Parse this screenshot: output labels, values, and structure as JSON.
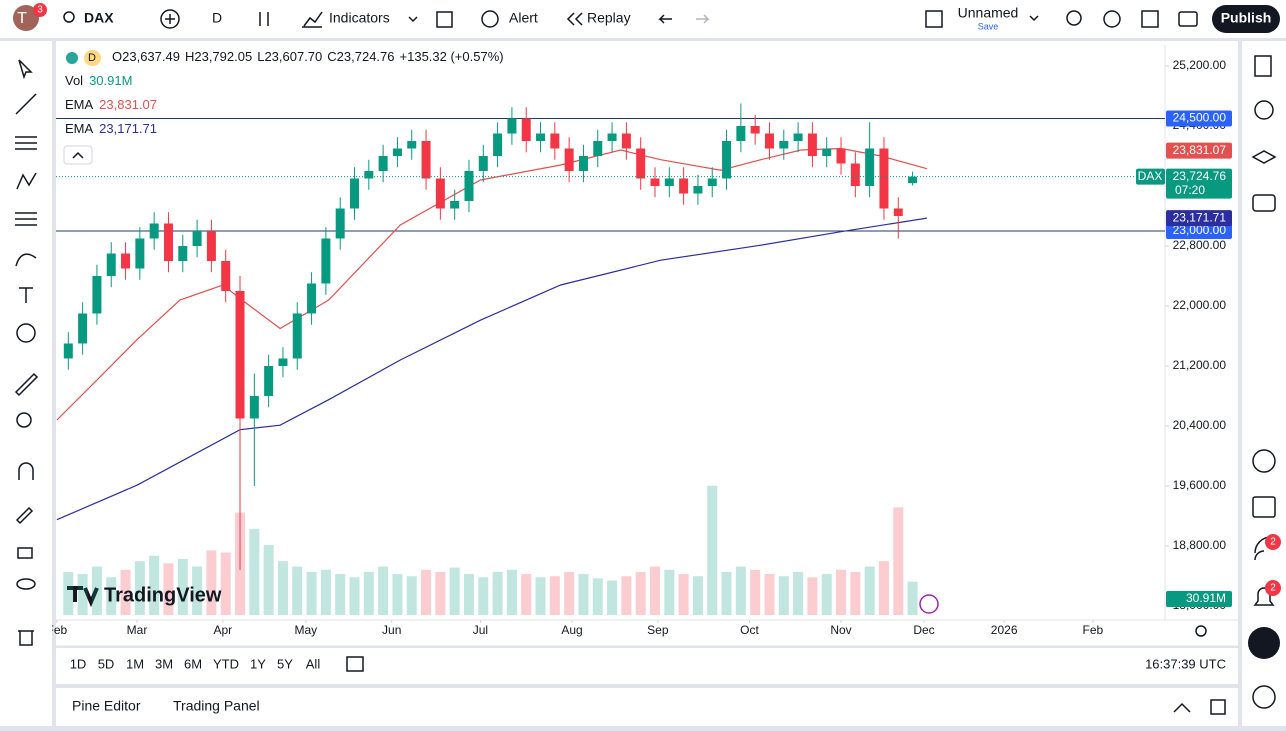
{
  "toolbar": {
    "avatar": "T",
    "notifications": "3",
    "symbol": "DAX",
    "interval": "D",
    "indicators": "Indicators",
    "alert": "Alert",
    "replay": "Replay",
    "layout_name": "Unnamed",
    "save": "Save",
    "publish": "Publish"
  },
  "legend": {
    "interval": "D",
    "o_label": "O",
    "open": "23,637.49",
    "h_label": "H",
    "high": "23,792.05",
    "l_label": "L",
    "low": "23,607.70",
    "c_label": "C",
    "close": "23,724.76",
    "change": "+135.32 (+0.57%)"
  },
  "chart_data": {
    "type": "candlestick",
    "x": [
      35,
      40,
      45,
      50,
      55,
      60,
      65,
      70,
      75,
      80,
      85,
      90,
      95,
      100,
      105,
      110,
      115,
      120,
      125,
      130,
      135,
      140,
      145,
      150,
      155,
      160,
      165,
      170,
      175,
      180,
      185,
      190,
      195,
      200,
      205,
      210,
      215,
      220,
      225,
      230,
      235,
      240,
      245,
      250,
      255,
      260,
      265,
      270,
      275,
      280,
      285,
      290,
      295,
      300,
      305,
      310,
      315,
      320,
      325,
      330
    ],
    "open": [
      21300,
      21500,
      21900,
      22400,
      22700,
      22500,
      22900,
      23100,
      22600,
      22800,
      23000,
      22600,
      22200,
      20500,
      20800,
      21200,
      21300,
      21900,
      22300,
      22900,
      23300,
      23700,
      23800,
      24000,
      24100,
      24200,
      23700,
      23300,
      23400,
      23800,
      24000,
      24300,
      24500,
      24200,
      24300,
      24100,
      23800,
      24000,
      24200,
      24300,
      24100,
      23700,
      23600,
      23700,
      23500,
      23600,
      23700,
      24200,
      24400,
      24300,
      24100,
      24200,
      24300,
      24000,
      24100,
      23900,
      23600,
      24100,
      23300,
      23637.49
    ],
    "high": [
      21650,
      22050,
      22550,
      22850,
      22850,
      23050,
      23250,
      23250,
      22950,
      23150,
      23150,
      22750,
      22400,
      21100,
      21350,
      21450,
      22050,
      22450,
      23050,
      23450,
      23850,
      23950,
      24150,
      24250,
      24350,
      24350,
      23850,
      23550,
      23950,
      24150,
      24450,
      24650,
      24650,
      24450,
      24450,
      24250,
      24150,
      24350,
      24450,
      24450,
      24250,
      23850,
      23850,
      23850,
      23750,
      23850,
      24350,
      24700,
      24550,
      24450,
      24350,
      24450,
      24450,
      24250,
      24250,
      24050,
      24450,
      24250,
      23450,
      23792.05
    ],
    "low": [
      21150,
      21350,
      21750,
      22250,
      22350,
      22350,
      22750,
      22450,
      22450,
      22650,
      22450,
      22050,
      18480,
      19600,
      20650,
      21050,
      21150,
      21750,
      22150,
      22750,
      23150,
      23550,
      23650,
      23850,
      23950,
      23550,
      23150,
      23150,
      23250,
      23650,
      23850,
      24150,
      24050,
      24050,
      23950,
      23650,
      23650,
      23850,
      24050,
      23950,
      23550,
      23450,
      23450,
      23350,
      23350,
      23450,
      23550,
      24050,
      24150,
      23950,
      23950,
      24050,
      23850,
      23850,
      23750,
      23450,
      23450,
      23150,
      22900,
      23607.7
    ],
    "close": [
      21500,
      21900,
      22400,
      22700,
      22500,
      22900,
      23100,
      22600,
      22800,
      23000,
      22600,
      22200,
      20500,
      20800,
      21200,
      21300,
      21900,
      22300,
      22900,
      23300,
      23700,
      23800,
      24000,
      24100,
      24200,
      23700,
      23300,
      23400,
      23800,
      24000,
      24300,
      24500,
      24200,
      24300,
      24100,
      23800,
      24000,
      24200,
      24300,
      24100,
      23700,
      23600,
      23700,
      23500,
      23600,
      23700,
      24200,
      24400,
      24300,
      24100,
      24200,
      24300,
      24000,
      24100,
      23900,
      23600,
      24100,
      23300,
      23200,
      23724.76
    ],
    "up_color": "#089981",
    "down_color": "#f23645",
    "current_price": {
      "label": "23,724.76",
      "countdown": "07:20"
    },
    "series": [
      {
        "name": "EMA",
        "color": "#e2504f",
        "label": "23,831.07",
        "x": [
          31,
          46,
          59,
          74,
          89,
          95,
          109,
          126,
          151,
          179,
          207,
          228,
          242,
          263,
          277,
          291,
          305,
          319,
          335
        ],
        "values": [
          20480,
          21050,
          21550,
          22080,
          22280,
          22100,
          21700,
          22080,
          23080,
          23680,
          23880,
          24080,
          23950,
          23810,
          23950,
          24080,
          24100,
          24000,
          23831.07
        ]
      },
      {
        "name": "EMA",
        "color": "#2a2e9e",
        "label": "23,171.71",
        "x": [
          31,
          59,
          95,
          109,
          126,
          151,
          179,
          207,
          242,
          277,
          305,
          335
        ],
        "values": [
          19150,
          19610,
          20350,
          20410,
          20750,
          21280,
          21810,
          22280,
          22610,
          22810,
          22990,
          23171.71
        ]
      }
    ],
    "price_lines": [
      {
        "value": 24500,
        "label": "24,500.00",
        "color": "#2962ff"
      },
      {
        "value": 23000,
        "label": "23,000.00",
        "color": "#2962ff"
      }
    ],
    "volume": {
      "name": "Vol",
      "label": "30.91M",
      "ylim": [
        0,
        130
      ],
      "values": [
        40,
        38,
        45,
        35,
        42,
        50,
        55,
        48,
        52,
        45,
        60,
        58,
        95,
        80,
        65,
        50,
        45,
        40,
        42,
        38,
        35,
        40,
        45,
        38,
        36,
        42,
        40,
        44,
        38,
        35,
        40,
        42,
        38,
        35,
        36,
        40,
        38,
        34,
        32,
        36,
        40,
        45,
        42,
        38,
        36,
        120,
        40,
        45,
        42,
        38,
        36,
        40,
        35,
        38,
        42,
        40,
        45,
        50,
        100,
        30.91
      ]
    },
    "xlim": [
      30.7,
      418.2
    ],
    "xticks": [
      {
        "value": 31,
        "label": "Feb"
      },
      {
        "value": 59,
        "label": "Mar"
      },
      {
        "value": 89,
        "label": "Apr"
      },
      {
        "value": 118,
        "label": "May"
      },
      {
        "value": 148,
        "label": "Jun"
      },
      {
        "value": 179,
        "label": "Jul"
      },
      {
        "value": 211,
        "label": "Aug"
      },
      {
        "value": 241,
        "label": "Sep"
      },
      {
        "value": 273,
        "label": "Oct"
      },
      {
        "value": 305,
        "label": "Nov"
      },
      {
        "value": 334,
        "label": "Dec"
      },
      {
        "value": 362,
        "label": "2026"
      },
      {
        "value": 393,
        "label": "Feb"
      }
    ],
    "ylim": [
      17813,
      25480
    ],
    "yticks": [
      {
        "value": 18000,
        "label": "18,000.00"
      },
      {
        "value": 18800,
        "label": "18,800.00"
      },
      {
        "value": 19600,
        "label": "19,600.00"
      },
      {
        "value": 20400,
        "label": "20,400.00"
      },
      {
        "value": 21200,
        "label": "21,200.00"
      },
      {
        "value": 22000,
        "label": "22,000.00"
      },
      {
        "value": 22800,
        "label": "22,800.00"
      },
      {
        "value": 23600,
        "label": "23,600.00"
      },
      {
        "value": 24400,
        "label": "24,400.00"
      },
      {
        "value": 25200,
        "label": "25,200.00"
      }
    ]
  },
  "logo": "TradingView",
  "timeframes": [
    "1D",
    "5D",
    "1M",
    "3M",
    "6M",
    "YTD",
    "1Y",
    "5Y",
    "All"
  ],
  "clock": "16:37:39 UTC",
  "bottom_tabs": [
    "Pine Editor",
    "Trading Panel"
  ],
  "sidebar_badges": [
    "2",
    "2"
  ]
}
